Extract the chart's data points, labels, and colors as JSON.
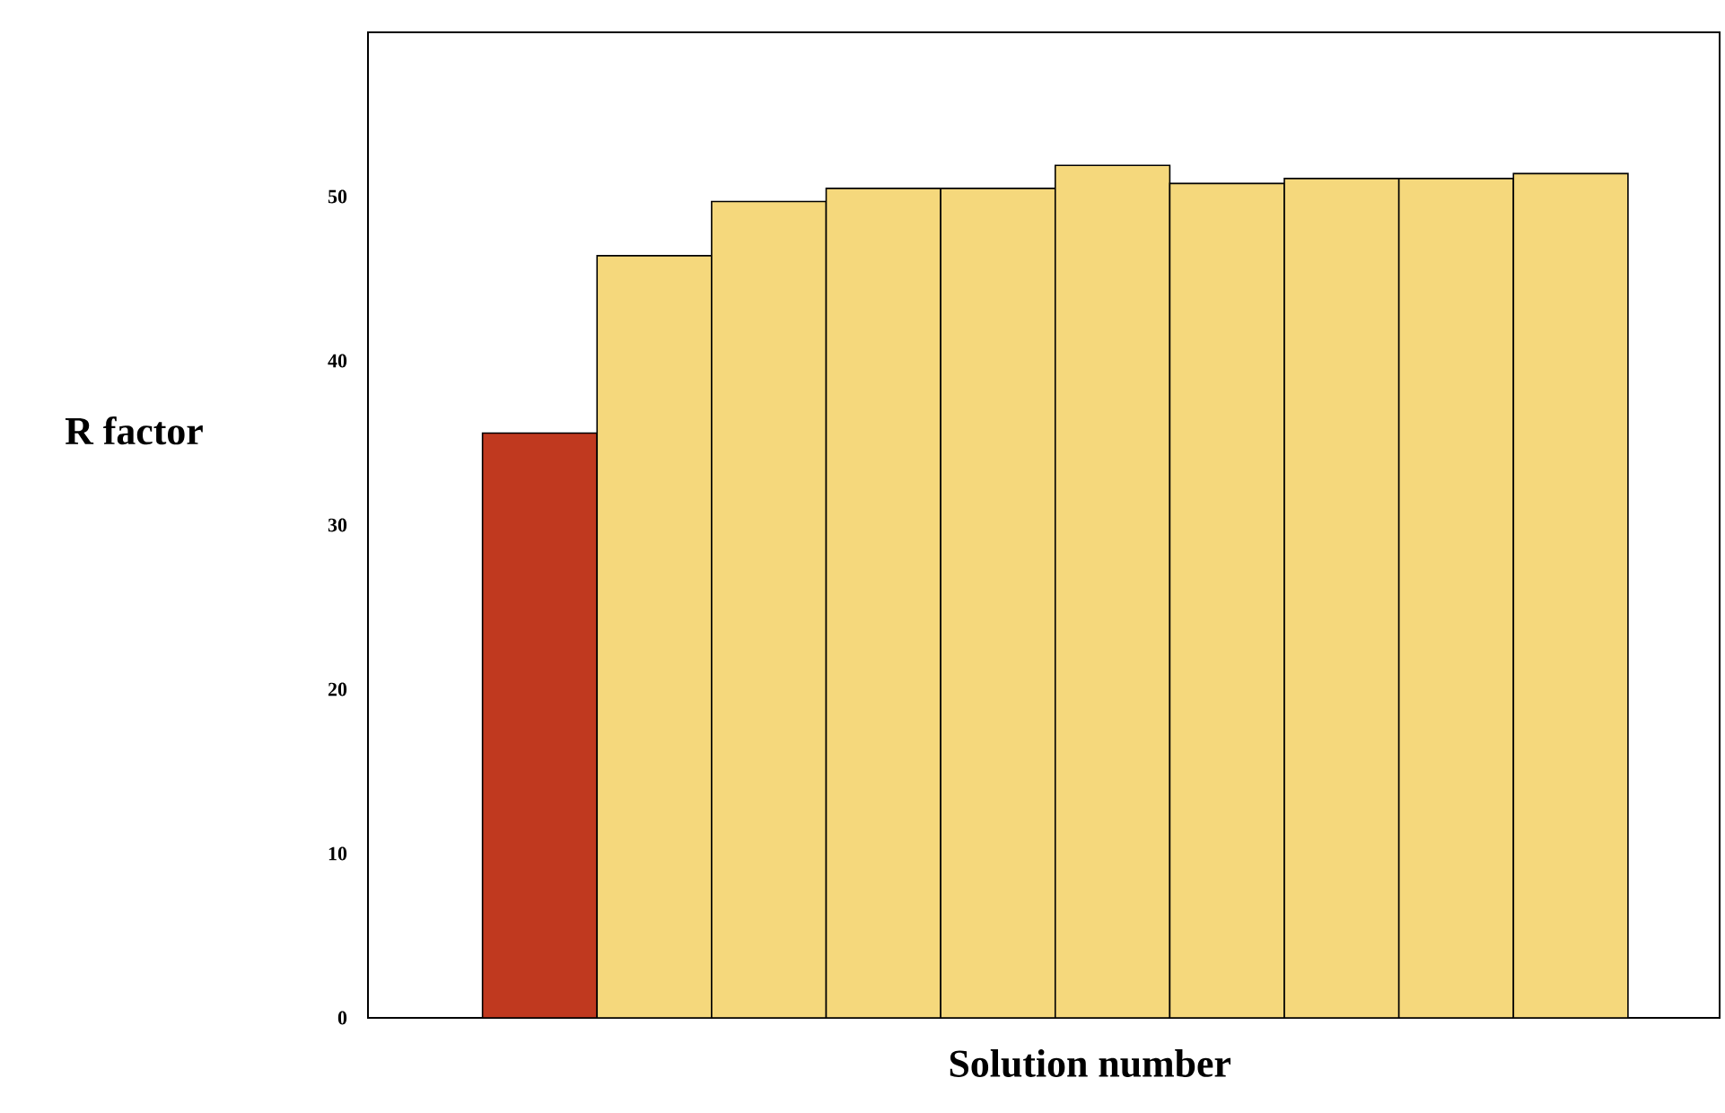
{
  "chart_data": {
    "type": "bar",
    "xlabel": "Solution number",
    "ylabel": "R factor",
    "categories": [
      null,
      null,
      null,
      null,
      null,
      null,
      null,
      null,
      null,
      null
    ],
    "values": [
      35.6,
      46.4,
      49.7,
      50.5,
      50.5,
      51.9,
      50.8,
      51.1,
      51.1,
      51.4
    ],
    "colors": [
      "#c0391f",
      "#f5d87c",
      "#f5d87c",
      "#f5d87c",
      "#f5d87c",
      "#f5d87c",
      "#f5d87c",
      "#f5d87c",
      "#f5d87c",
      "#f5d87c"
    ],
    "ylim": [
      0,
      60
    ],
    "yticks": [
      0,
      10,
      20,
      30,
      40,
      50
    ]
  }
}
